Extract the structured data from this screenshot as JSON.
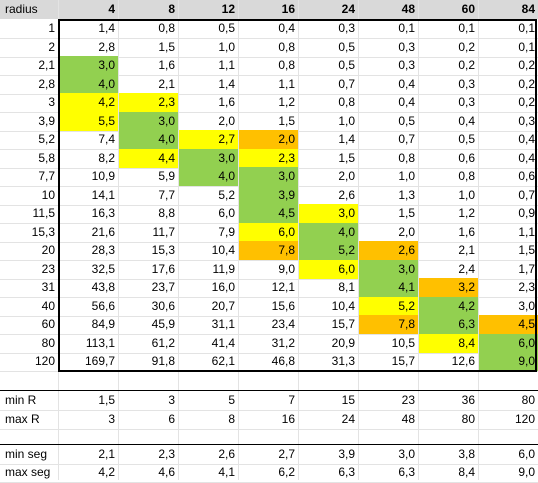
{
  "header": {
    "label": "radius",
    "columns": [
      "4",
      "8",
      "12",
      "16",
      "24",
      "48",
      "60",
      "84"
    ]
  },
  "rows": [
    {
      "label": "1",
      "values": [
        "1,4",
        "0,8",
        "0,5",
        "0,4",
        "0,3",
        "0,1",
        "0,1",
        "0,1"
      ],
      "colors": [
        "",
        "",
        "",
        "",
        "",
        "",
        "",
        ""
      ]
    },
    {
      "label": "2",
      "values": [
        "2,8",
        "1,5",
        "1,0",
        "0,8",
        "0,5",
        "0,3",
        "0,2",
        "0,1"
      ],
      "colors": [
        "",
        "",
        "",
        "",
        "",
        "",
        "",
        ""
      ]
    },
    {
      "label": "2,1",
      "values": [
        "3,0",
        "1,6",
        "1,1",
        "0,8",
        "0,5",
        "0,3",
        "0,2",
        "0,2"
      ],
      "colors": [
        "green",
        "",
        "",
        "",
        "",
        "",
        "",
        ""
      ]
    },
    {
      "label": "2,8",
      "values": [
        "4,0",
        "2,1",
        "1,4",
        "1,1",
        "0,7",
        "0,4",
        "0,3",
        "0,2"
      ],
      "colors": [
        "green",
        "",
        "",
        "",
        "",
        "",
        "",
        ""
      ]
    },
    {
      "label": "3",
      "values": [
        "4,2",
        "2,3",
        "1,6",
        "1,2",
        "0,8",
        "0,4",
        "0,3",
        "0,2"
      ],
      "colors": [
        "yellow",
        "yellow",
        "",
        "",
        "",
        "",
        "",
        ""
      ]
    },
    {
      "label": "3,9",
      "values": [
        "5,5",
        "3,0",
        "2,0",
        "1,5",
        "1,0",
        "0,5",
        "0,4",
        "0,3"
      ],
      "colors": [
        "yellow",
        "green",
        "",
        "",
        "",
        "",
        "",
        ""
      ]
    },
    {
      "label": "5,2",
      "values": [
        "7,4",
        "4,0",
        "2,7",
        "2,0",
        "1,4",
        "0,7",
        "0,5",
        "0,4"
      ],
      "colors": [
        "",
        "green",
        "yellow",
        "orange",
        "",
        "",
        "",
        ""
      ]
    },
    {
      "label": "5,8",
      "values": [
        "8,2",
        "4,4",
        "3,0",
        "2,3",
        "1,5",
        "0,8",
        "0,6",
        "0,4"
      ],
      "colors": [
        "",
        "yellow",
        "green",
        "yellow",
        "",
        "",
        "",
        ""
      ]
    },
    {
      "label": "7,7",
      "values": [
        "10,9",
        "5,9",
        "4,0",
        "3,0",
        "2,0",
        "1,0",
        "0,8",
        "0,6"
      ],
      "colors": [
        "",
        "",
        "green",
        "green",
        "",
        "",
        "",
        ""
      ]
    },
    {
      "label": "10",
      "values": [
        "14,1",
        "7,7",
        "5,2",
        "3,9",
        "2,6",
        "1,3",
        "1,0",
        "0,7"
      ],
      "colors": [
        "",
        "",
        "",
        "green",
        "",
        "",
        "",
        ""
      ]
    },
    {
      "label": "11,5",
      "values": [
        "16,3",
        "8,8",
        "6,0",
        "4,5",
        "3,0",
        "1,5",
        "1,2",
        "0,9"
      ],
      "colors": [
        "",
        "",
        "",
        "green",
        "yellow",
        "",
        "",
        ""
      ]
    },
    {
      "label": "15,3",
      "values": [
        "21,6",
        "11,7",
        "7,9",
        "6,0",
        "4,0",
        "2,0",
        "1,6",
        "1,1"
      ],
      "colors": [
        "",
        "",
        "",
        "yellow",
        "green",
        "",
        "",
        ""
      ]
    },
    {
      "label": "20",
      "values": [
        "28,3",
        "15,3",
        "10,4",
        "7,8",
        "5,2",
        "2,6",
        "2,1",
        "1,5"
      ],
      "colors": [
        "",
        "",
        "",
        "orange",
        "green",
        "orange",
        "",
        ""
      ]
    },
    {
      "label": "23",
      "values": [
        "32,5",
        "17,6",
        "11,9",
        "9,0",
        "6,0",
        "3,0",
        "2,4",
        "1,7"
      ],
      "colors": [
        "",
        "",
        "",
        "",
        "yellow",
        "green",
        "",
        ""
      ]
    },
    {
      "label": "31",
      "values": [
        "43,8",
        "23,7",
        "16,0",
        "12,1",
        "8,1",
        "4,1",
        "3,2",
        "2,3"
      ],
      "colors": [
        "",
        "",
        "",
        "",
        "",
        "green",
        "orange",
        ""
      ]
    },
    {
      "label": "40",
      "values": [
        "56,6",
        "30,6",
        "20,7",
        "15,6",
        "10,4",
        "5,2",
        "4,2",
        "3,0"
      ],
      "colors": [
        "",
        "",
        "",
        "",
        "",
        "yellow",
        "green",
        ""
      ]
    },
    {
      "label": "60",
      "values": [
        "84,9",
        "45,9",
        "31,1",
        "23,4",
        "15,7",
        "7,8",
        "6,3",
        "4,5"
      ],
      "colors": [
        "",
        "",
        "",
        "",
        "",
        "orange",
        "green",
        "orange"
      ]
    },
    {
      "label": "80",
      "values": [
        "113,1",
        "61,2",
        "41,4",
        "31,2",
        "20,9",
        "10,5",
        "8,4",
        "6,0"
      ],
      "colors": [
        "",
        "",
        "",
        "",
        "",
        "",
        "yellow",
        "green"
      ]
    },
    {
      "label": "120",
      "values": [
        "169,7",
        "91,8",
        "62,1",
        "46,8",
        "31,3",
        "15,7",
        "12,6",
        "9,0"
      ],
      "colors": [
        "",
        "",
        "",
        "",
        "",
        "",
        "",
        "green"
      ]
    }
  ],
  "summary1": [
    {
      "label": "min R",
      "values": [
        "1,5",
        "3",
        "5",
        "7",
        "15",
        "23",
        "36",
        "80"
      ]
    },
    {
      "label": "max R",
      "values": [
        "3",
        "6",
        "8",
        "16",
        "24",
        "48",
        "80",
        "120"
      ]
    }
  ],
  "summary2": [
    {
      "label": "min seg",
      "values": [
        "2,1",
        "2,3",
        "2,6",
        "2,7",
        "3,9",
        "3,0",
        "3,8",
        "6,0"
      ]
    },
    {
      "label": "max seg",
      "values": [
        "4,2",
        "4,6",
        "4,1",
        "6,2",
        "6,3",
        "6,3",
        "8,4",
        "9,0"
      ]
    }
  ],
  "palette": {
    "green": "#92d050",
    "yellow": "#ffff00",
    "orange": "#ffc000",
    "header_bg": "#d9d9d9"
  }
}
